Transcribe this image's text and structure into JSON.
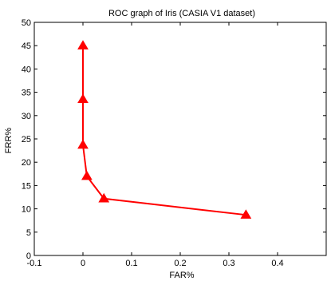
{
  "chart_data": {
    "type": "line",
    "title": "ROC graph of Iris (CASIA V1 dataset)",
    "xlabel": "FAR%",
    "ylabel": "FRR%",
    "xlim": [
      -0.1,
      0.5
    ],
    "ylim": [
      0,
      50
    ],
    "x_ticks": [
      -0.1,
      0,
      0.1,
      0.2,
      0.3,
      0.4
    ],
    "x_tick_labels": [
      "-0.1",
      "0",
      "0.1",
      "0.2",
      "0.3",
      "0.4"
    ],
    "y_ticks": [
      0,
      5,
      10,
      15,
      20,
      25,
      30,
      35,
      40,
      45,
      50
    ],
    "y_tick_labels": [
      "0",
      "5",
      "10",
      "15",
      "20",
      "25",
      "30",
      "35",
      "40",
      "45",
      "50"
    ],
    "grid": false,
    "series": [
      {
        "color": "#ff0000",
        "marker": "triangle-up",
        "x": [
          0,
          0,
          0,
          0.008,
          0.043,
          0.335
        ],
        "y": [
          45,
          33.5,
          23.7,
          17,
          12.2,
          8.7
        ]
      }
    ]
  }
}
